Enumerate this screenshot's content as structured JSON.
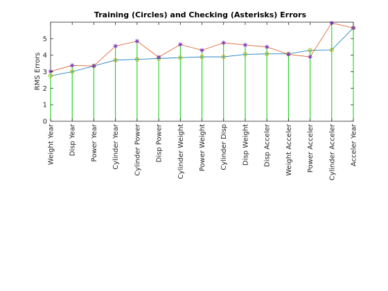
{
  "chart_data": {
    "type": "line",
    "title": "Training (Circles) and Checking (Asterisks) Errors",
    "xlabel": "",
    "ylabel": "RMS Errors",
    "ylim": [
      0,
      6
    ],
    "yticks": [
      0,
      1,
      2,
      3,
      4,
      5
    ],
    "grid": false,
    "categories": [
      "Weight Year",
      "Disp Year",
      "Power Year",
      "Cylinder Year",
      "Cylinder Power",
      "Disp Power",
      "Cylinder Weight",
      "Power Weight",
      "Cylinder Disp",
      "Disp Weight",
      "Disp Acceler",
      "Weight Acceler",
      "Power Acceler",
      "Cylinder Acceler",
      "Acceler Year"
    ],
    "series": [
      {
        "marker": "circle",
        "color": "#0072BD",
        "values": [
          2.75,
          3.0,
          3.35,
          3.7,
          3.75,
          3.8,
          3.85,
          3.9,
          3.9,
          4.05,
          4.08,
          4.08,
          4.3,
          4.32,
          5.65
        ]
      },
      {
        "marker": "asterisk",
        "color": "#D95319",
        "values": [
          3.02,
          3.38,
          3.35,
          4.55,
          4.85,
          3.88,
          4.65,
          4.3,
          4.75,
          4.62,
          4.5,
          4.05,
          3.9,
          5.95,
          5.65
        ]
      }
    ],
    "stem_color": "#00CC00",
    "circle_marker_color": "#B0B000",
    "asterisk_marker_color": "#7B2FBF"
  }
}
